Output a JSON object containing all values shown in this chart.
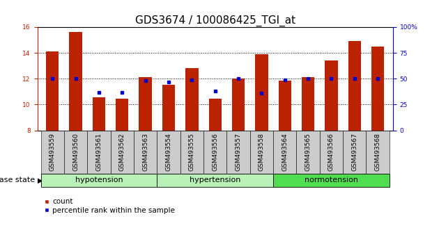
{
  "title": "GDS3674 / 100086425_TGI_at",
  "samples": [
    "GSM493559",
    "GSM493560",
    "GSM493561",
    "GSM493562",
    "GSM493563",
    "GSM493554",
    "GSM493555",
    "GSM493556",
    "GSM493557",
    "GSM493558",
    "GSM493564",
    "GSM493565",
    "GSM493566",
    "GSM493567",
    "GSM493568"
  ],
  "count_values": [
    14.1,
    15.6,
    10.55,
    10.45,
    12.1,
    11.55,
    12.8,
    10.45,
    12.0,
    13.9,
    11.85,
    12.1,
    13.4,
    14.9,
    14.5
  ],
  "percentile_values": [
    50,
    50,
    37,
    37,
    48,
    47,
    49,
    38,
    50,
    36,
    49,
    50,
    50,
    50,
    50
  ],
  "group_boundaries": [
    {
      "start": 0,
      "end": 4,
      "label": "hypotension",
      "color": "#b8f0b8"
    },
    {
      "start": 5,
      "end": 9,
      "label": "hypertension",
      "color": "#b8f0b8"
    },
    {
      "start": 10,
      "end": 14,
      "label": "normotension",
      "color": "#50dd50"
    }
  ],
  "ylim_left": [
    8,
    16
  ],
  "ylim_right": [
    0,
    100
  ],
  "yticks_left": [
    8,
    10,
    12,
    14,
    16
  ],
  "yticks_right": [
    0,
    25,
    50,
    75,
    100
  ],
  "ytick_right_labels": [
    "0",
    "25",
    "50",
    "75",
    "100%"
  ],
  "hgrid_lines": [
    10,
    12,
    14
  ],
  "bar_color": "#bb2200",
  "dot_color": "#0000cc",
  "bar_width": 0.55,
  "tick_label_bg": "#cccccc",
  "title_fontsize": 11,
  "tick_fontsize": 6.5,
  "group_fontsize": 8,
  "legend_fontsize": 7.5
}
